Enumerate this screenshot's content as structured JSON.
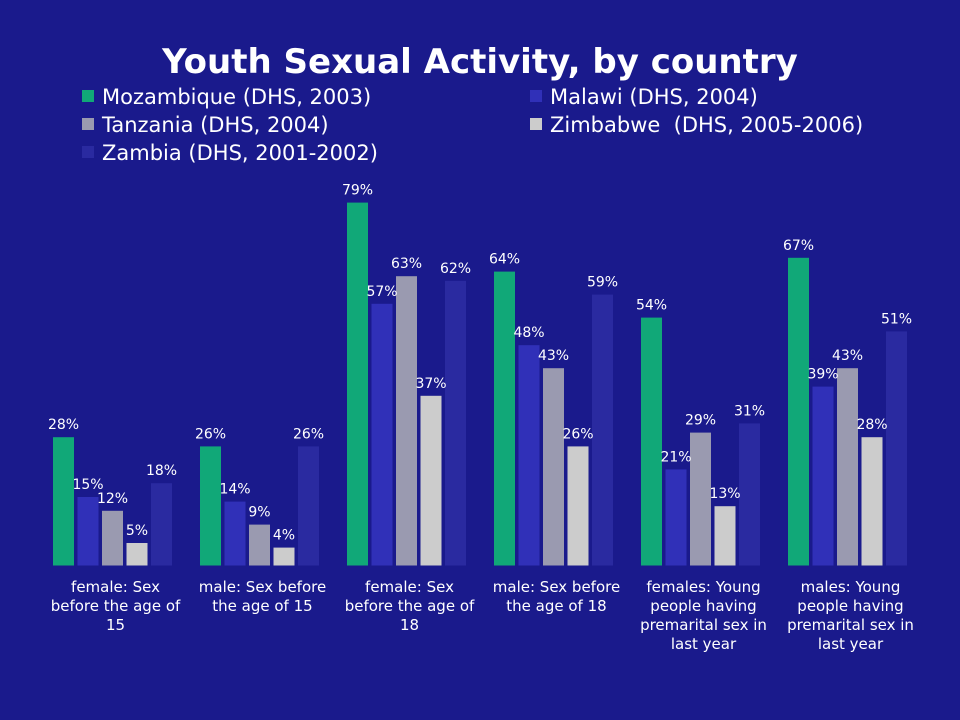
{
  "chart_data": {
    "type": "bar",
    "title": "Youth Sexual Activity, by country",
    "categories": [
      "female: Sex before the age of 15",
      "male: Sex before the age of 15",
      "female: Sex before the age of 18",
      "male: Sex before the age of 18",
      "females: Young people having premarital sex in last year",
      "males: Young people having premarital sex in last year"
    ],
    "category_lines": [
      [
        "female: Sex",
        "before the age of",
        "15"
      ],
      [
        "male: Sex before",
        "the age of 15"
      ],
      [
        "female: Sex",
        "before the age of",
        "18"
      ],
      [
        "male: Sex before",
        "the age of 18"
      ],
      [
        "females: Young",
        "people having",
        "premarital sex in",
        "last year"
      ],
      [
        "males: Young",
        "people having",
        "premarital sex in",
        "last year"
      ]
    ],
    "series": [
      {
        "name": "Mozambique (DHS, 2003)",
        "color": "#11a878",
        "values": [
          28,
          26,
          79,
          64,
          54,
          67
        ]
      },
      {
        "name": "Malawi (DHS, 2004)",
        "color": "#3030b8",
        "values": [
          15,
          14,
          57,
          48,
          21,
          39
        ]
      },
      {
        "name": "Tanzania (DHS, 2004)",
        "color": "#9a9ab0",
        "values": [
          12,
          9,
          63,
          43,
          29,
          43
        ]
      },
      {
        "name": "Zimbabwe  (DHS, 2005-2006)",
        "color": "#cccccc",
        "values": [
          5,
          4,
          37,
          26,
          13,
          28
        ]
      },
      {
        "name": "Zambia (DHS, 2001-2002)",
        "color": "#2a2aa0",
        "values": [
          18,
          26,
          62,
          59,
          31,
          51
        ]
      }
    ],
    "legend_order": [
      0,
      1,
      2,
      3,
      4
    ],
    "value_suffix": "%",
    "ylim": [
      0,
      100
    ],
    "grid": false,
    "legend_position": "top"
  }
}
